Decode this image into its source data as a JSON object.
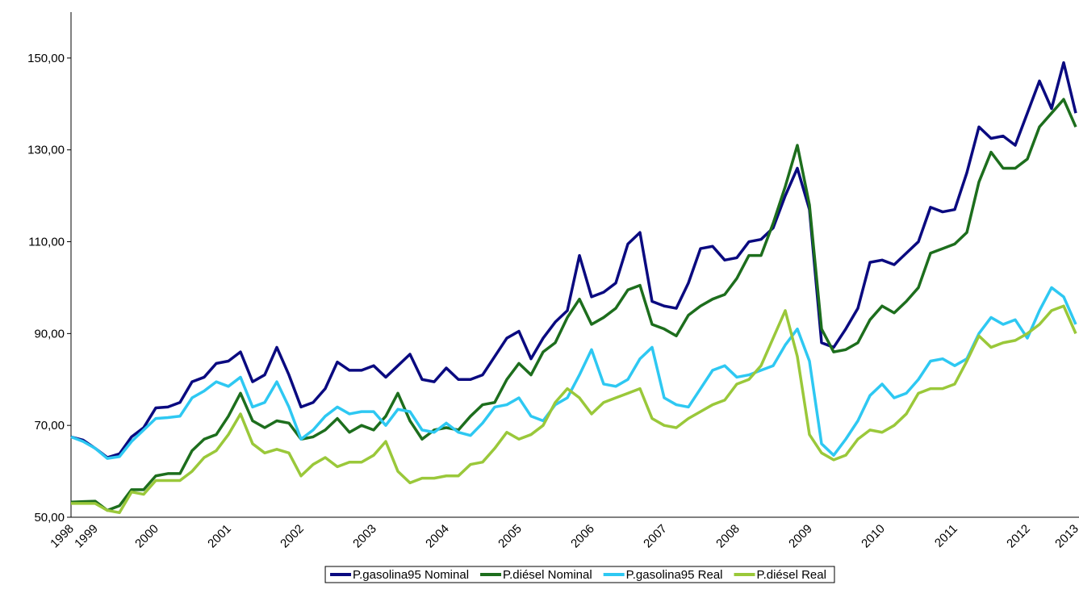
{
  "chart_data": {
    "type": "line",
    "categories": [
      "1998",
      null,
      "1999",
      null,
      null,
      null,
      null,
      "2000",
      null,
      null,
      null,
      null,
      null,
      "2001",
      null,
      null,
      null,
      null,
      null,
      "2002",
      null,
      null,
      null,
      null,
      null,
      "2003",
      null,
      null,
      null,
      null,
      null,
      "2004",
      null,
      null,
      null,
      null,
      null,
      "2005",
      null,
      null,
      null,
      null,
      null,
      "2006",
      null,
      null,
      null,
      null,
      null,
      "2007",
      null,
      null,
      null,
      null,
      null,
      "2008",
      null,
      null,
      null,
      null,
      null,
      "2009",
      null,
      null,
      null,
      null,
      null,
      "2010",
      null,
      null,
      null,
      null,
      null,
      "2011",
      null,
      null,
      null,
      null,
      null,
      "2012",
      null,
      null,
      null,
      "2013"
    ],
    "series": [
      {
        "name": "P.gasolina95 Nominal",
        "color": "#0a0a80",
        "values": [
          67.5,
          66.8,
          65.0,
          63.0,
          63.8,
          67.5,
          69.5,
          73.8,
          74.0,
          75.0,
          79.5,
          80.5,
          83.5,
          84.0,
          86.0,
          79.5,
          81.0,
          87.0,
          81.0,
          74.0,
          75.0,
          78.0,
          83.8,
          82.0,
          82.0,
          83.0,
          80.5,
          83.0,
          85.5,
          80.0,
          79.5,
          82.5,
          80.0,
          80.0,
          81.0,
          85.0,
          89.0,
          90.5,
          84.5,
          89.0,
          92.5,
          95.0,
          107.0,
          98.0,
          99.0,
          101.0,
          109.5,
          112.0,
          97.0,
          96.0,
          95.5,
          101.0,
          108.5,
          109.0,
          106.0,
          106.5,
          110.0,
          110.5,
          113.0,
          120.0,
          126.0,
          117.0,
          88.0,
          87.0,
          91.0,
          95.5,
          105.5,
          106.0,
          105.0,
          107.5,
          110.0,
          117.5,
          116.5,
          117.0,
          125.0,
          135.0,
          132.5,
          133.0,
          131.0,
          138.0,
          145.0,
          139.0,
          149.0,
          138.0
        ]
      },
      {
        "name": "P.diésel Nominal",
        "color": "#1d6e1d",
        "values": [
          53.3,
          53.4,
          53.5,
          51.5,
          52.5,
          56.0,
          56.0,
          59.0,
          59.5,
          59.5,
          64.5,
          67.0,
          68.0,
          72.0,
          77.0,
          71.0,
          69.5,
          71.0,
          70.5,
          67.0,
          67.5,
          69.0,
          71.5,
          68.5,
          70.0,
          69.0,
          72.0,
          77.0,
          71.0,
          67.0,
          69.0,
          69.5,
          69.0,
          72.0,
          74.5,
          75.0,
          80.0,
          83.5,
          81.0,
          86.0,
          88.0,
          93.5,
          97.5,
          92.0,
          93.5,
          95.5,
          99.5,
          100.5,
          92.0,
          91.0,
          89.5,
          94.0,
          96.0,
          97.5,
          98.5,
          102.0,
          107.0,
          107.0,
          114.0,
          122.0,
          131.0,
          118.0,
          91.0,
          86.0,
          86.5,
          88.0,
          93.0,
          96.0,
          94.5,
          97.0,
          100.0,
          107.5,
          108.5,
          109.5,
          112.0,
          123.0,
          129.5,
          126.0,
          126.0,
          128.0,
          135.0,
          138.0,
          141.0,
          135.0
        ]
      },
      {
        "name": "P.gasolina95 Real",
        "color": "#2ec8f2",
        "values": [
          67.5,
          66.5,
          65.0,
          62.8,
          63.2,
          66.5,
          69.0,
          71.5,
          71.7,
          72.0,
          76.0,
          77.5,
          79.5,
          78.5,
          80.5,
          74.0,
          75.0,
          79.5,
          74.0,
          67.0,
          69.0,
          72.0,
          74.0,
          72.5,
          73.0,
          73.0,
          70.0,
          73.5,
          73.0,
          69.0,
          68.5,
          70.5,
          68.5,
          67.8,
          70.5,
          74.0,
          74.5,
          76.0,
          72.0,
          71.0,
          74.5,
          76.0,
          81.0,
          86.5,
          79.0,
          78.5,
          80.0,
          84.5,
          87.0,
          76.0,
          74.5,
          74.0,
          78.0,
          82.0,
          83.0,
          80.5,
          81.0,
          82.0,
          83.0,
          87.5,
          91.0,
          84.0,
          66.0,
          63.5,
          67.0,
          71.0,
          76.5,
          79.0,
          76.0,
          77.0,
          80.0,
          84.0,
          84.5,
          83.0,
          84.5,
          90.0,
          93.5,
          92.0,
          93.0,
          89.0,
          95.0,
          100.0,
          98.0,
          92.0
        ]
      },
      {
        "name": "P.diésel Real",
        "color": "#9ac83a",
        "values": [
          53.0,
          53.0,
          53.0,
          51.5,
          51.0,
          55.5,
          55.0,
          58.0,
          58.0,
          58.0,
          60.0,
          63.0,
          64.5,
          68.0,
          72.5,
          66.0,
          64.0,
          64.8,
          64.0,
          59.0,
          61.5,
          63.0,
          61.0,
          62.0,
          62.0,
          63.5,
          66.5,
          60.0,
          57.5,
          58.5,
          58.5,
          59.0,
          59.0,
          61.5,
          62.0,
          65.0,
          68.5,
          67.0,
          68.0,
          70.0,
          75.0,
          78.0,
          76.0,
          72.5,
          75.0,
          76.0,
          77.0,
          78.0,
          71.5,
          70.0,
          69.5,
          71.5,
          73.0,
          74.5,
          75.5,
          79.0,
          80.0,
          83.0,
          89.0,
          95.0,
          85.0,
          68.0,
          64.0,
          62.5,
          63.5,
          67.0,
          69.0,
          68.5,
          70.0,
          72.5,
          77.0,
          78.0,
          78.0,
          79.0,
          84.0,
          89.5,
          87.0,
          88.0,
          88.5,
          90.0,
          92.0,
          95.0,
          96.0,
          90.0
        ]
      }
    ],
    "ylim": [
      50,
      160
    ],
    "yticks": [
      {
        "value": 50,
        "label": "50,00"
      },
      {
        "value": 70,
        "label": "70,00"
      },
      {
        "value": 90,
        "label": "90,00"
      },
      {
        "value": 110,
        "label": "110,00"
      },
      {
        "value": 130,
        "label": "130,00"
      },
      {
        "value": 150,
        "label": "150,00"
      }
    ],
    "grid": false,
    "legend": "bottom"
  }
}
